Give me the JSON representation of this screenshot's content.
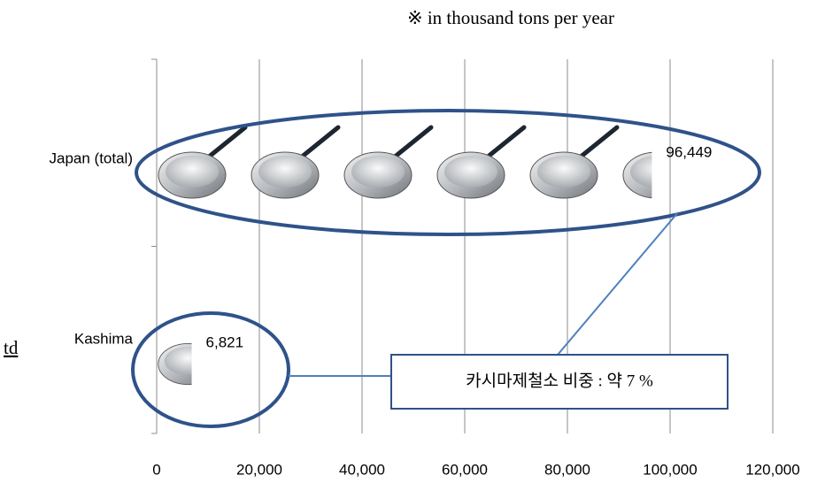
{
  "chart_data": {
    "type": "bar",
    "orientation": "horizontal",
    "subtitle": "※ in thousand tons per year",
    "categories": [
      "Japan (total)",
      "Kashima"
    ],
    "values": [
      96449,
      6821
    ],
    "value_labels": [
      "96,449",
      "6,821"
    ],
    "xlim": [
      0,
      120000
    ],
    "xticks": [
      0,
      {
        "value": 20000,
        "label": "20,000"
      },
      {
        "value": 40000,
        "label": "40,000"
      },
      {
        "value": 60000,
        "label": "60,000"
      },
      {
        "value": 80000,
        "label": "80,000"
      },
      {
        "value": 100000,
        "label": "100,000"
      },
      {
        "value": 120000,
        "label": "120,000"
      }
    ],
    "grid": true,
    "annotation": "카시마제철소 비중 : 약 7 %",
    "side_text": "td"
  }
}
